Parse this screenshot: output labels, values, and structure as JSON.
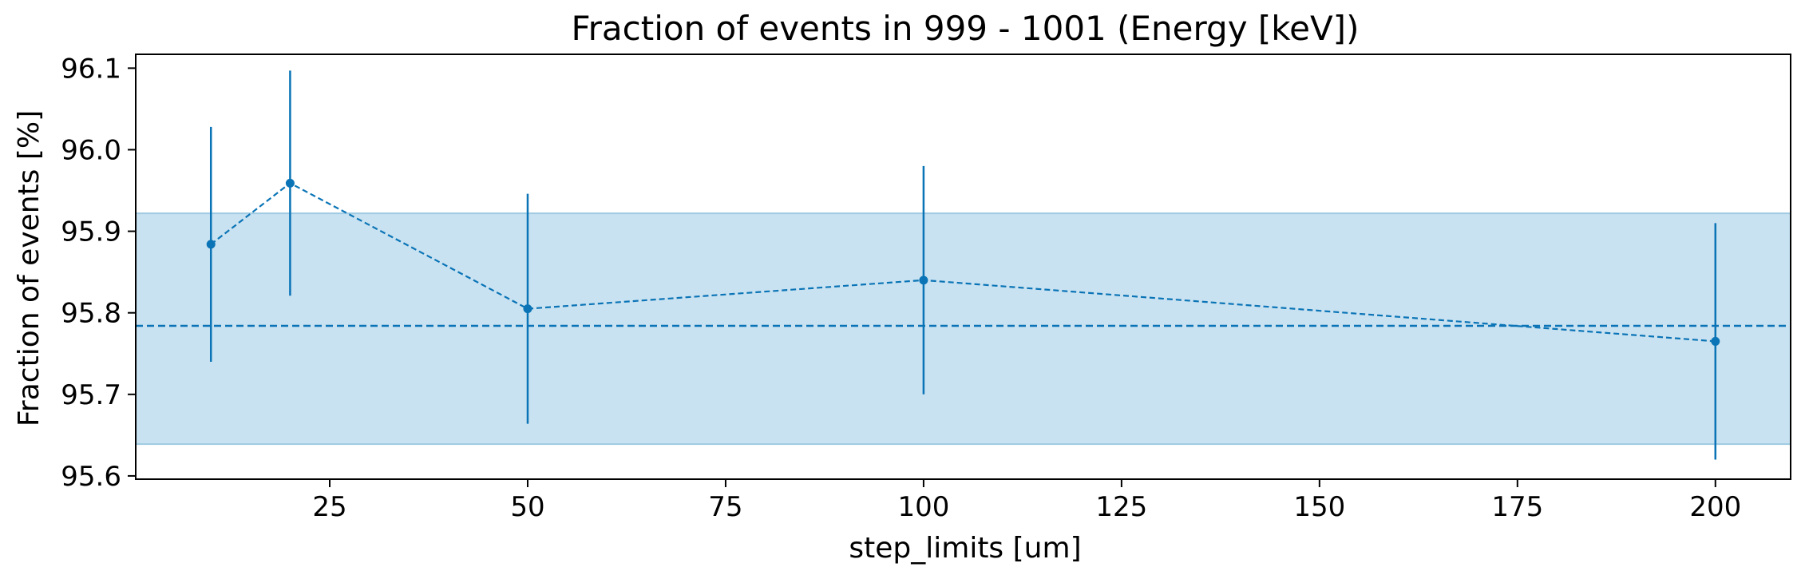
{
  "chart_data": {
    "type": "line",
    "title": "Fraction of events in 999 - 1001 (Energy [keV])",
    "xlabel": "step_limits [um]",
    "ylabel": "Fraction of events [%]",
    "xlim": [
      0.5,
      209.5
    ],
    "ylim": [
      95.596,
      96.117
    ],
    "xticks": [
      25,
      50,
      75,
      100,
      125,
      150,
      175,
      200
    ],
    "yticks": [
      95.6,
      95.7,
      95.8,
      95.9,
      96.0,
      96.1
    ],
    "ytick_labels": [
      "95.6",
      "95.7",
      "95.8",
      "95.9",
      "96.0",
      "96.1"
    ],
    "grid": false,
    "series": [
      {
        "x": [
          10,
          20,
          50,
          100,
          200
        ],
        "y": [
          95.884,
          95.959,
          95.805,
          95.84,
          95.765
        ],
        "yerr": [
          0.144,
          0.138,
          0.141,
          0.14,
          0.145
        ],
        "linestyle": "dashed",
        "marker": "circle",
        "color": "#0a74b6"
      }
    ],
    "mean_line": {
      "y": 95.784,
      "linestyle": "dashed",
      "color": "#0a74b6"
    },
    "band": {
      "ymin": 95.639,
      "ymax": 95.922,
      "color": "#c9e2f1",
      "edge_color": "#9fcbe3"
    }
  }
}
